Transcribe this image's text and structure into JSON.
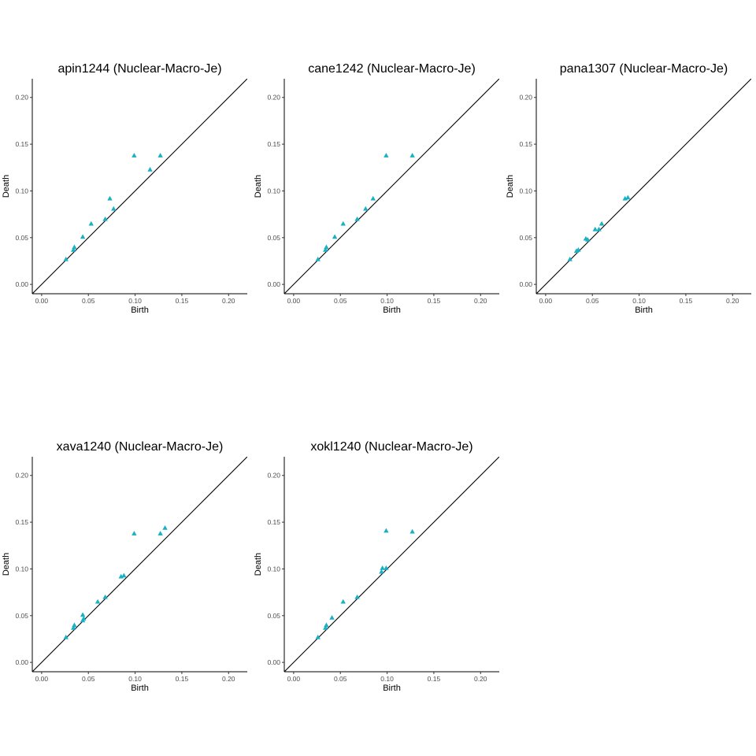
{
  "colors": {
    "points": "#17b0c4",
    "diagonal": "#000000",
    "axis": "#000000",
    "ticktext": "#4d4d4d"
  },
  "chart_data": [
    {
      "type": "scatter",
      "title": "apin1244 (Nuclear-Macro-Je)",
      "xlabel": "Birth",
      "ylabel": "Death",
      "xlim": [
        -0.01,
        0.22
      ],
      "ylim": [
        -0.01,
        0.22
      ],
      "xticks": [
        "0.00",
        "0.05",
        "0.10",
        "0.15",
        "0.20"
      ],
      "yticks": [
        "0.00",
        "0.05",
        "0.10",
        "0.15",
        "0.20"
      ],
      "marker": "triangle",
      "diagonal": true,
      "grid": false,
      "points": [
        {
          "x": 0.026,
          "y": 0.027
        },
        {
          "x": 0.034,
          "y": 0.037
        },
        {
          "x": 0.035,
          "y": 0.04
        },
        {
          "x": 0.044,
          "y": 0.051
        },
        {
          "x": 0.053,
          "y": 0.065
        },
        {
          "x": 0.068,
          "y": 0.07
        },
        {
          "x": 0.073,
          "y": 0.092
        },
        {
          "x": 0.077,
          "y": 0.081
        },
        {
          "x": 0.099,
          "y": 0.138
        },
        {
          "x": 0.116,
          "y": 0.123
        },
        {
          "x": 0.127,
          "y": 0.138
        }
      ]
    },
    {
      "type": "scatter",
      "title": "cane1242 (Nuclear-Macro-Je)",
      "xlabel": "Birth",
      "ylabel": "Death",
      "xlim": [
        -0.01,
        0.22
      ],
      "ylim": [
        -0.01,
        0.22
      ],
      "xticks": [
        "0.00",
        "0.05",
        "0.10",
        "0.15",
        "0.20"
      ],
      "yticks": [
        "0.00",
        "0.05",
        "0.10",
        "0.15",
        "0.20"
      ],
      "marker": "triangle",
      "diagonal": true,
      "grid": false,
      "points": [
        {
          "x": 0.026,
          "y": 0.027
        },
        {
          "x": 0.034,
          "y": 0.037
        },
        {
          "x": 0.035,
          "y": 0.04
        },
        {
          "x": 0.044,
          "y": 0.051
        },
        {
          "x": 0.053,
          "y": 0.065
        },
        {
          "x": 0.068,
          "y": 0.07
        },
        {
          "x": 0.077,
          "y": 0.081
        },
        {
          "x": 0.085,
          "y": 0.092
        },
        {
          "x": 0.099,
          "y": 0.138
        },
        {
          "x": 0.127,
          "y": 0.138
        }
      ]
    },
    {
      "type": "scatter",
      "title": "pana1307 (Nuclear-Macro-Je)",
      "xlabel": "Birth",
      "ylabel": "Death",
      "xlim": [
        -0.01,
        0.22
      ],
      "ylim": [
        -0.01,
        0.22
      ],
      "xticks": [
        "0.00",
        "0.05",
        "0.10",
        "0.15",
        "0.20"
      ],
      "yticks": [
        "0.00",
        "0.05",
        "0.10",
        "0.15",
        "0.20"
      ],
      "marker": "triangle",
      "diagonal": true,
      "grid": false,
      "points": [
        {
          "x": 0.026,
          "y": 0.027
        },
        {
          "x": 0.033,
          "y": 0.036
        },
        {
          "x": 0.035,
          "y": 0.037
        },
        {
          "x": 0.043,
          "y": 0.049
        },
        {
          "x": 0.045,
          "y": 0.048
        },
        {
          "x": 0.053,
          "y": 0.059
        },
        {
          "x": 0.057,
          "y": 0.059
        },
        {
          "x": 0.06,
          "y": 0.065
        },
        {
          "x": 0.085,
          "y": 0.092
        },
        {
          "x": 0.088,
          "y": 0.093
        }
      ]
    },
    {
      "type": "scatter",
      "title": "xava1240 (Nuclear-Macro-Je)",
      "xlabel": "Birth",
      "ylabel": "Death",
      "xlim": [
        -0.01,
        0.22
      ],
      "ylim": [
        -0.01,
        0.22
      ],
      "xticks": [
        "0.00",
        "0.05",
        "0.10",
        "0.15",
        "0.20"
      ],
      "yticks": [
        "0.00",
        "0.05",
        "0.10",
        "0.15",
        "0.20"
      ],
      "marker": "triangle",
      "diagonal": true,
      "grid": false,
      "points": [
        {
          "x": 0.026,
          "y": 0.027
        },
        {
          "x": 0.034,
          "y": 0.037
        },
        {
          "x": 0.035,
          "y": 0.04
        },
        {
          "x": 0.044,
          "y": 0.045
        },
        {
          "x": 0.045,
          "y": 0.047
        },
        {
          "x": 0.044,
          "y": 0.051
        },
        {
          "x": 0.06,
          "y": 0.065
        },
        {
          "x": 0.068,
          "y": 0.07
        },
        {
          "x": 0.085,
          "y": 0.092
        },
        {
          "x": 0.088,
          "y": 0.093
        },
        {
          "x": 0.099,
          "y": 0.138
        },
        {
          "x": 0.127,
          "y": 0.138
        },
        {
          "x": 0.132,
          "y": 0.144
        }
      ]
    },
    {
      "type": "scatter",
      "title": "xokl1240 (Nuclear-Macro-Je)",
      "xlabel": "Birth",
      "ylabel": "Death",
      "xlim": [
        -0.01,
        0.22
      ],
      "ylim": [
        -0.01,
        0.22
      ],
      "xticks": [
        "0.00",
        "0.05",
        "0.10",
        "0.15",
        "0.20"
      ],
      "yticks": [
        "0.00",
        "0.05",
        "0.10",
        "0.15",
        "0.20"
      ],
      "marker": "triangle",
      "diagonal": true,
      "grid": false,
      "points": [
        {
          "x": 0.026,
          "y": 0.027
        },
        {
          "x": 0.034,
          "y": 0.037
        },
        {
          "x": 0.035,
          "y": 0.04
        },
        {
          "x": 0.041,
          "y": 0.048
        },
        {
          "x": 0.053,
          "y": 0.065
        },
        {
          "x": 0.068,
          "y": 0.07
        },
        {
          "x": 0.094,
          "y": 0.097
        },
        {
          "x": 0.095,
          "y": 0.101
        },
        {
          "x": 0.099,
          "y": 0.101
        },
        {
          "x": 0.099,
          "y": 0.141
        },
        {
          "x": 0.127,
          "y": 0.14
        }
      ]
    }
  ]
}
